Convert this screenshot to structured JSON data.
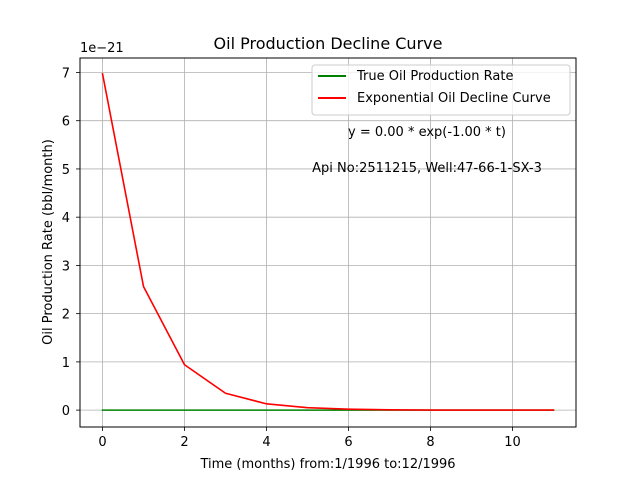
{
  "chart_data": {
    "type": "line",
    "title": "Oil Production Decline Curve",
    "xlabel": "Time (months) from:1/1996 to:12/1996",
    "ylabel": "Oil Production Rate (bbl/month)",
    "y_offset_text": "1e−21",
    "y_scale_exponent": -21,
    "xlim": [
      -0.55,
      11.55
    ],
    "ylim": [
      -0.35,
      7.3
    ],
    "x_ticks": [
      0,
      2,
      4,
      6,
      8,
      10
    ],
    "y_ticks": [
      0,
      1,
      2,
      3,
      4,
      5,
      6,
      7
    ],
    "grid": true,
    "legend_position": "top-right",
    "x": [
      0,
      1,
      2,
      3,
      4,
      5,
      6,
      7,
      8,
      9,
      10,
      11
    ],
    "series": [
      {
        "name": "True Oil Production Rate",
        "color": "#008000",
        "values": [
          0,
          0,
          0,
          0,
          0,
          0,
          0,
          0,
          0,
          0,
          0,
          0
        ]
      },
      {
        "name": "Exponential Oil Decline Curve",
        "color": "#ff0000",
        "values": [
          6.97,
          2.56,
          0.94,
          0.35,
          0.13,
          0.05,
          0.02,
          0.006,
          0.002,
          0.001,
          0.0003,
          0.0001
        ]
      }
    ],
    "annotations": [
      "y = 0.00 * exp(-1.00 * t)",
      "Api No:2511215, Well:47-66-1-SX-3"
    ]
  }
}
